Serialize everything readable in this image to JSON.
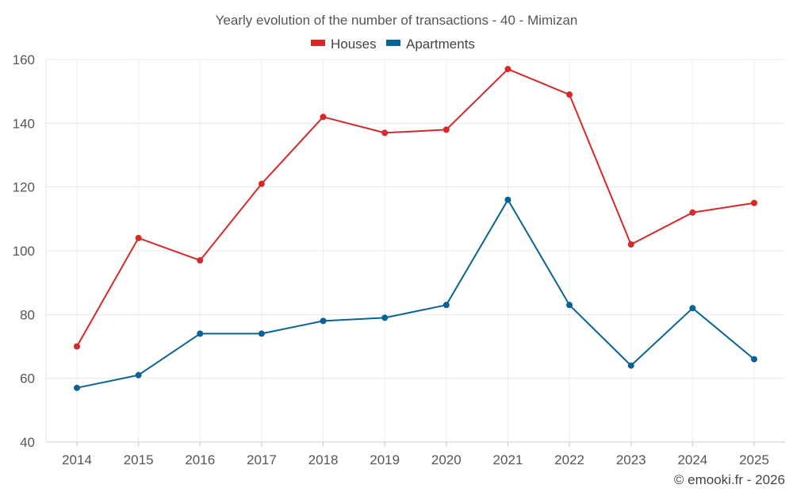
{
  "chart_data": {
    "type": "line",
    "title": "Yearly evolution of the number of transactions - 40 - Mimizan",
    "categories": [
      "2014",
      "2015",
      "2016",
      "2017",
      "2018",
      "2019",
      "2020",
      "2021",
      "2022",
      "2023",
      "2024",
      "2025"
    ],
    "series": [
      {
        "name": "Houses",
        "color": "#d42a2a",
        "values": [
          70,
          104,
          97,
          121,
          142,
          137,
          138,
          157,
          149,
          102,
          112,
          115
        ]
      },
      {
        "name": "Apartments",
        "color": "#0a6394",
        "values": [
          57,
          61,
          74,
          74,
          78,
          79,
          83,
          116,
          83,
          64,
          82,
          66
        ]
      }
    ],
    "ylim": [
      40,
      160
    ],
    "yticks": [
      40,
      60,
      80,
      100,
      120,
      140,
      160
    ],
    "grid": true,
    "legend_position": "top-center",
    "xlabel": "",
    "ylabel": ""
  },
  "footer": {
    "credit": "© emooki.fr - 2026"
  }
}
